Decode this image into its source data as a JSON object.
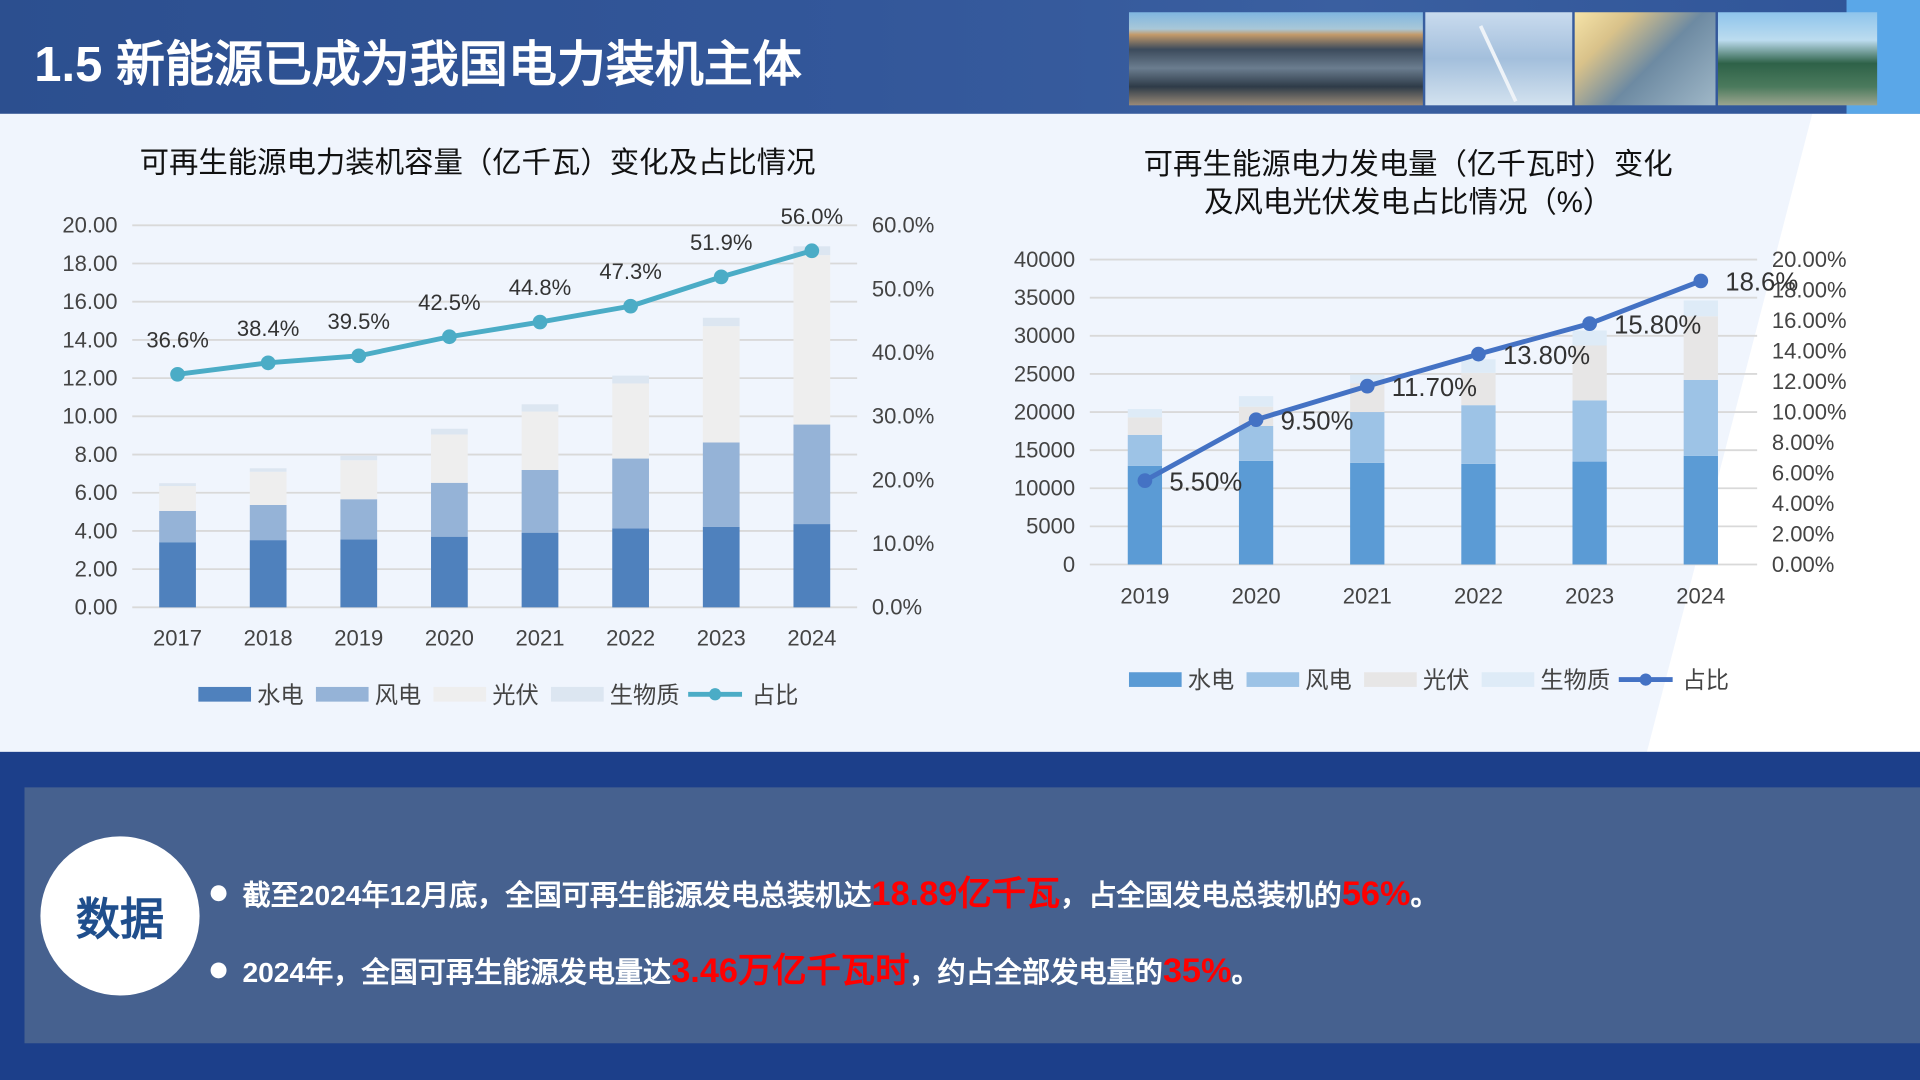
{
  "header": {
    "title": "1.5 新能源已成为我国电力装机主体"
  },
  "left_chart_title": "可再生能源电力装机容量（亿千瓦）变化及占比情况",
  "right_chart_title": [
    "可再生能源电力发电量（亿千瓦时）变化",
    "及风电光伏发电占比情况（%）"
  ],
  "chart_data": [
    {
      "type": "bar",
      "stacked": true,
      "title": "可再生能源电力装机容量（亿千瓦）变化及占比情况",
      "categories": [
        "2017",
        "2018",
        "2019",
        "2020",
        "2021",
        "2022",
        "2023",
        "2024"
      ],
      "ylim": [
        0,
        20
      ],
      "yticks": [
        "0.00",
        "2.00",
        "4.00",
        "6.00",
        "8.00",
        "10.00",
        "12.00",
        "14.00",
        "16.00",
        "18.00",
        "20.00"
      ],
      "y2lim": [
        0,
        60
      ],
      "y2ticks": [
        "0.0%",
        "10.0%",
        "20.0%",
        "30.0%",
        "40.0%",
        "50.0%",
        "60.0%"
      ],
      "grid": true,
      "legend": "bottom",
      "series": [
        {
          "name": "水电",
          "color": "#4f81bd",
          "values": [
            3.41,
            3.52,
            3.56,
            3.7,
            3.91,
            4.14,
            4.22,
            4.36
          ]
        },
        {
          "name": "风电",
          "color": "#95b3d7",
          "values": [
            1.64,
            1.84,
            2.1,
            2.82,
            3.28,
            3.65,
            4.41,
            5.21
          ]
        },
        {
          "name": "光伏",
          "color": "#eeeeee",
          "values": [
            1.3,
            1.74,
            2.04,
            2.53,
            3.06,
            3.93,
            6.09,
            8.87
          ]
        },
        {
          "name": "生物质",
          "color": "#dce6f1",
          "values": [
            0.15,
            0.18,
            0.23,
            0.3,
            0.38,
            0.41,
            0.44,
            0.46
          ]
        }
      ],
      "line": {
        "name": "占比",
        "color": "#4bacc6",
        "axis": "secondary",
        "values": [
          36.6,
          38.4,
          39.5,
          42.5,
          44.8,
          47.3,
          51.9,
          56.0
        ],
        "labels": [
          "36.6%",
          "38.4%",
          "39.5%",
          "42.5%",
          "44.8%",
          "47.3%",
          "51.9%",
          "56.0%"
        ]
      }
    },
    {
      "type": "bar",
      "stacked": true,
      "title": "可再生能源电力发电量（亿千瓦时）变化及风电光伏发电占比情况（%）",
      "categories": [
        "2019",
        "2020",
        "2021",
        "2022",
        "2023",
        "2024"
      ],
      "ylim": [
        0,
        40000
      ],
      "yticks": [
        "0",
        "5000",
        "10000",
        "15000",
        "20000",
        "25000",
        "30000",
        "35000",
        "40000"
      ],
      "y2lim": [
        0,
        20
      ],
      "y2ticks": [
        "0.00%",
        "2.00%",
        "4.00%",
        "6.00%",
        "8.00%",
        "10.00%",
        "12.00%",
        "14.00%",
        "16.00%",
        "18.00%",
        "20.00%"
      ],
      "grid": true,
      "legend": "bottom",
      "series": [
        {
          "name": "水电",
          "color": "#5b9bd5",
          "values": [
            12950,
            13600,
            13330,
            13200,
            13500,
            14260
          ]
        },
        {
          "name": "风电",
          "color": "#9dc3e6",
          "values": [
            4050,
            4570,
            6670,
            7700,
            8030,
            9960
          ]
        },
        {
          "name": "光伏",
          "color": "#e7e6e6",
          "values": [
            2300,
            2530,
            3750,
            4240,
            7200,
            8340
          ]
        },
        {
          "name": "生物质",
          "color": "#deebf7",
          "values": [
            1090,
            1390,
            1150,
            1790,
            1970,
            2080
          ]
        }
      ],
      "line": {
        "name": "占比",
        "color": "#4472c4",
        "axis": "secondary",
        "values": [
          5.5,
          9.5,
          11.7,
          13.8,
          15.8,
          18.6
        ],
        "labels": [
          "5.50%",
          "9.50%",
          "11.70%",
          "13.80%",
          "15.80%",
          "18.6%"
        ]
      }
    }
  ],
  "summary": {
    "badge": "数据",
    "bullets": [
      {
        "parts": [
          {
            "text": "截至2024年12月底，全国可再生能源发电总装机达",
            "highlight": false
          },
          {
            "text": "18.89亿千瓦",
            "highlight": true
          },
          {
            "text": "，占全国发电总装机的",
            "highlight": false
          },
          {
            "text": "56%",
            "highlight": true
          },
          {
            "text": "。",
            "highlight": false
          }
        ]
      },
      {
        "parts": [
          {
            "text": "2024年，全国可再生能源发电量达",
            "highlight": false
          },
          {
            "text": "3.46万亿千瓦时",
            "highlight": true
          },
          {
            "text": "，约占全部发电量的",
            "highlight": false
          },
          {
            "text": "35%",
            "highlight": true
          },
          {
            "text": "。",
            "highlight": false
          }
        ]
      }
    ]
  },
  "colors": {
    "header": "#2f5498",
    "bottom_band": "#1c3f8a",
    "panel": "#46618f",
    "highlight": "#ff0000"
  }
}
